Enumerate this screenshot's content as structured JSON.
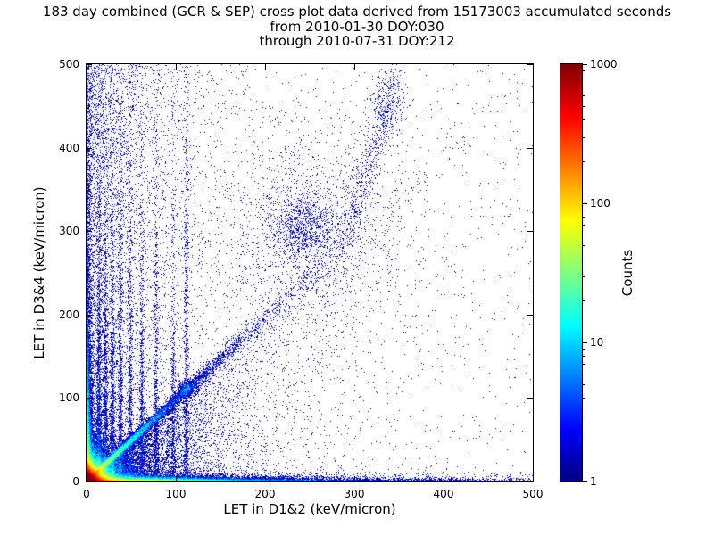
{
  "chart_data": {
    "type": "scatter",
    "title": "183 day combined (GCR & SEP) cross plot data derived from 15173003 accumulated seconds",
    "subtitle1": "from 2010-01-30 DOY:030",
    "subtitle2": "through 2010-07-31 DOY:212",
    "xlabel": "LET in D1&2 (keV/micron)",
    "ylabel": "LET in D3&4 (keV/micron)",
    "xlim": [
      0,
      500
    ],
    "ylim": [
      0,
      500
    ],
    "xticks": [
      0,
      100,
      200,
      300,
      400,
      500
    ],
    "yticks": [
      0,
      100,
      200,
      300,
      400,
      500
    ],
    "grid": false,
    "legend": "none",
    "colorbar": {
      "label": "Counts",
      "scale": "log",
      "min": 1,
      "max": 1000,
      "ticks": [
        1,
        10,
        100,
        1000
      ],
      "colormap": "jet"
    },
    "density_features": [
      {
        "kind": "exp2d",
        "desc": "intense hot (red/orange) core at origin",
        "n": 160000,
        "sx": 5,
        "sy": 5
      },
      {
        "kind": "exp2d",
        "desc": "green/cyan halo around core out to ~(40,40)",
        "n": 25000,
        "sx": 12,
        "sy": 12
      },
      {
        "kind": "exp2d",
        "desc": "dense hot band along x-axis fading to green by x~120",
        "n": 26000,
        "sx": 55,
        "sy": 1.8
      },
      {
        "kind": "exp2d",
        "desc": "sparse blue tail along x-axis out to 500",
        "n": 7000,
        "sx": 160,
        "sy": 2.5
      },
      {
        "kind": "exp2d",
        "desc": "dense band up the left edge (x~0-5)",
        "n": 11000,
        "sx": 1.8,
        "sy": 45
      },
      {
        "kind": "exp2d",
        "desc": "sparse left-edge tail up to y~500",
        "n": 4000,
        "sx": 2.0,
        "sy": 150
      },
      {
        "kind": "diag",
        "desc": "y~x coincidence ridge, green/cyan to ~120",
        "n": 14000,
        "xscale": 38,
        "slope": 0.98,
        "perp0": 1.8,
        "perpk": 0.02
      },
      {
        "kind": "diag",
        "desc": "sparse diagonal continuation past 150",
        "n": 2200,
        "xscale": 110,
        "slope": 0.98,
        "perp0": 3.0,
        "perpk": 0.03
      },
      {
        "kind": "gauss",
        "desc": "bright knot on ridge near (112,111)",
        "cx": 112,
        "cy": 111,
        "sx": 5,
        "sy": 5,
        "n": 500
      },
      {
        "kind": "streaks",
        "desc": "vertical blue streaks at low LET-x",
        "xsig": 1.3,
        "ymax": 500,
        "items": [
          {
            "x": 14,
            "n": 1700,
            "ys": 110
          },
          {
            "x": 21,
            "n": 1300,
            "ys": 110
          },
          {
            "x": 29,
            "n": 1100,
            "ys": 120
          },
          {
            "x": 38,
            "n": 950,
            "ys": 120
          },
          {
            "x": 49,
            "n": 850,
            "ys": 130
          },
          {
            "x": 62,
            "n": 750,
            "ys": 130
          },
          {
            "x": 78,
            "n": 650,
            "ys": 140
          },
          {
            "x": 97,
            "n": 550,
            "ys": 140
          },
          {
            "x": 112,
            "n": 900,
            "ys": 200
          }
        ]
      },
      {
        "kind": "gauss",
        "desc": "mid cluster near (243,303)",
        "cx": 243,
        "cy": 303,
        "sx": 17,
        "sy": 22,
        "n": 900
      },
      {
        "kind": "gauss",
        "desc": "diffuse cloud surrounding mid cluster",
        "cx": 250,
        "cy": 300,
        "sx": 55,
        "sy": 60,
        "n": 1700
      },
      {
        "kind": "curve",
        "desc": "rising sparse band from (290,295) to (348,485)",
        "x0": 290,
        "y0": 295,
        "x1": 348,
        "y1": 485,
        "sx": 7,
        "sy": 12,
        "n": 650
      },
      {
        "kind": "gauss",
        "desc": "denser knot in rising band near (337,450)",
        "cx": 337,
        "cy": 450,
        "sx": 9,
        "sy": 22,
        "n": 260
      },
      {
        "kind": "wedge",
        "desc": "blue speckle wedge below the ridge",
        "n": 8000,
        "xscale": 75,
        "yfrac": 0.95
      },
      {
        "kind": "fill",
        "desc": "speckle filling left column at all y",
        "n": 6500,
        "xscale": 50,
        "ymax": 500
      },
      {
        "kind": "uniform",
        "desc": "isolated background events everywhere",
        "n": 1300
      }
    ]
  }
}
